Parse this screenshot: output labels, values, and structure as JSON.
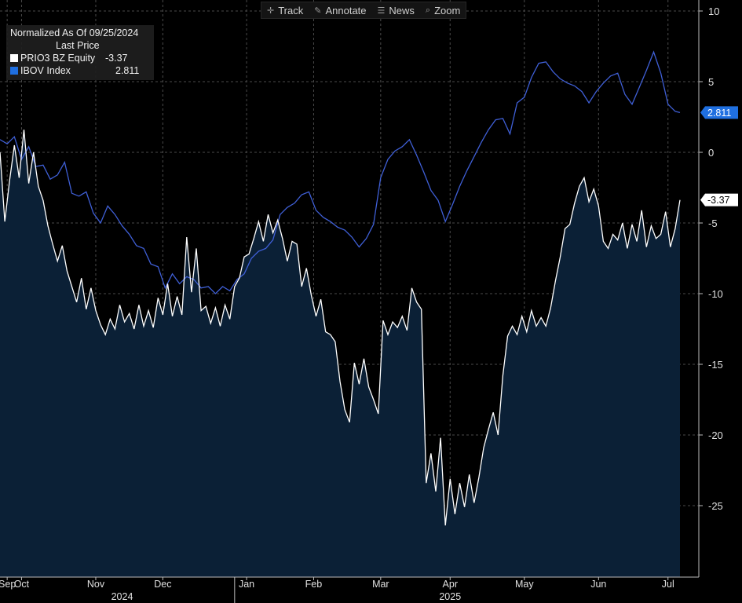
{
  "toolbar": {
    "items": [
      {
        "label": "Track",
        "icon": "crosshair-icon"
      },
      {
        "label": "Annotate",
        "icon": "pencil-icon"
      },
      {
        "label": "News",
        "icon": "news-icon"
      },
      {
        "label": "Zoom",
        "icon": "magnifier-icon"
      }
    ]
  },
  "legend": {
    "title": "Normalized As Of 09/25/2024",
    "subtitle": "Last Price",
    "entries": [
      {
        "name": "PRIO3 BZ Equity",
        "value": "-3.37",
        "color": "#ffffff"
      },
      {
        "name": "IBOV Index",
        "value": "2.811",
        "color": "#1f6fe0"
      }
    ]
  },
  "colors": {
    "background": "#000000",
    "area_fill": "#0b2036",
    "prio_line": "#ffffff",
    "ibov_line": "#3f5fd6",
    "ibov_tag": "#1f6fe0",
    "grid": "#4a4a4a"
  },
  "chart_data": {
    "type": "line",
    "grid": "dashed vertical and horizontal",
    "legend_position": "top-left",
    "y_axis_side": "right",
    "ylim": [
      -30,
      10
    ],
    "yticks": [
      10,
      5,
      0,
      -5,
      -10,
      -15,
      -20,
      -25
    ],
    "xlim": [
      "2024-09-25",
      "2025-07-06"
    ],
    "months": [
      {
        "label": "Sep",
        "date": "2024-09-28"
      },
      {
        "label": "Oct",
        "date": "2024-10-04"
      },
      {
        "label": "Nov",
        "date": "2024-11-04"
      },
      {
        "label": "Dec",
        "date": "2024-12-02"
      },
      {
        "label": "Jan",
        "date": "2025-01-06"
      },
      {
        "label": "Feb",
        "date": "2025-02-03"
      },
      {
        "label": "Mar",
        "date": "2025-03-03"
      },
      {
        "label": "Apr",
        "date": "2025-04-01"
      },
      {
        "label": "May",
        "date": "2025-05-02"
      },
      {
        "label": "Jun",
        "date": "2025-06-02"
      },
      {
        "label": "Jul",
        "date": "2025-07-01"
      }
    ],
    "years": [
      {
        "label": "2024",
        "date": "2024-11-15"
      },
      {
        "label": "2025",
        "date": "2025-04-01"
      }
    ],
    "year_divider": "2025-01-01",
    "series": [
      {
        "name": "PRIO3 BZ Equity",
        "last": -3.37,
        "style": "area",
        "points": [
          [
            "2024-09-25",
            0
          ],
          [
            "2024-09-27",
            -4.9
          ],
          [
            "2024-09-29",
            -2
          ],
          [
            "2024-10-01",
            0.5
          ],
          [
            "2024-10-03",
            -1.8
          ],
          [
            "2024-10-05",
            1.6
          ],
          [
            "2024-10-07",
            -2.2
          ],
          [
            "2024-10-09",
            0
          ],
          [
            "2024-10-11",
            -2.4
          ],
          [
            "2024-10-13",
            -3.4
          ],
          [
            "2024-10-15",
            -5.2
          ],
          [
            "2024-10-17",
            -6.5
          ],
          [
            "2024-10-19",
            -7.7
          ],
          [
            "2024-10-21",
            -6.6
          ],
          [
            "2024-10-23",
            -8.4
          ],
          [
            "2024-10-25",
            -9.5
          ],
          [
            "2024-10-27",
            -10.6
          ],
          [
            "2024-10-29",
            -8.9
          ],
          [
            "2024-10-31",
            -11.1
          ],
          [
            "2024-11-02",
            -9.6
          ],
          [
            "2024-11-04",
            -11.2
          ],
          [
            "2024-11-06",
            -12.2
          ],
          [
            "2024-11-08",
            -12.9
          ],
          [
            "2024-11-10",
            -11.8
          ],
          [
            "2024-11-12",
            -12.5
          ],
          [
            "2024-11-14",
            -10.8
          ],
          [
            "2024-11-16",
            -12.0
          ],
          [
            "2024-11-18",
            -11.4
          ],
          [
            "2024-11-20",
            -12.5
          ],
          [
            "2024-11-22",
            -10.8
          ],
          [
            "2024-11-24",
            -12.3
          ],
          [
            "2024-11-26",
            -11.2
          ],
          [
            "2024-11-28",
            -12.4
          ],
          [
            "2024-11-30",
            -10.3
          ],
          [
            "2024-12-02",
            -11.5
          ],
          [
            "2024-12-04",
            -9.3
          ],
          [
            "2024-12-06",
            -11.6
          ],
          [
            "2024-12-08",
            -10.2
          ],
          [
            "2024-12-10",
            -11.5
          ],
          [
            "2024-12-12",
            -6.0
          ],
          [
            "2024-12-14",
            -9.9
          ],
          [
            "2024-12-16",
            -6.8
          ],
          [
            "2024-12-18",
            -11.2
          ],
          [
            "2024-12-20",
            -10.9
          ],
          [
            "2024-12-22",
            -12.1
          ],
          [
            "2024-12-24",
            -11.0
          ],
          [
            "2024-12-26",
            -12.3
          ],
          [
            "2024-12-28",
            -10.8
          ],
          [
            "2024-12-30",
            -11.8
          ],
          [
            "2025-01-01",
            -9.5
          ],
          [
            "2025-01-03",
            -8.9
          ],
          [
            "2025-01-05",
            -7.4
          ],
          [
            "2025-01-07",
            -7.2
          ],
          [
            "2025-01-09",
            -6.1
          ],
          [
            "2025-01-11",
            -4.9
          ],
          [
            "2025-01-13",
            -6.3
          ],
          [
            "2025-01-15",
            -4.4
          ],
          [
            "2025-01-17",
            -5.7
          ],
          [
            "2025-01-19",
            -4.8
          ],
          [
            "2025-01-21",
            -6.1
          ],
          [
            "2025-01-23",
            -7.7
          ],
          [
            "2025-01-25",
            -6.3
          ],
          [
            "2025-01-27",
            -6.5
          ],
          [
            "2025-01-29",
            -9.5
          ],
          [
            "2025-01-31",
            -8.2
          ],
          [
            "2025-02-02",
            -10.1
          ],
          [
            "2025-02-04",
            -11.6
          ],
          [
            "2025-02-06",
            -10.4
          ],
          [
            "2025-02-08",
            -12.7
          ],
          [
            "2025-02-10",
            -12.9
          ],
          [
            "2025-02-12",
            -13.4
          ],
          [
            "2025-02-14",
            -16.2
          ],
          [
            "2025-02-16",
            -18.2
          ],
          [
            "2025-02-18",
            -19.1
          ],
          [
            "2025-02-20",
            -14.9
          ],
          [
            "2025-02-22",
            -16.4
          ],
          [
            "2025-02-24",
            -14.6
          ],
          [
            "2025-02-26",
            -16.6
          ],
          [
            "2025-02-28",
            -17.5
          ],
          [
            "2025-03-02",
            -18.5
          ],
          [
            "2025-03-04",
            -11.9
          ],
          [
            "2025-03-06",
            -12.9
          ],
          [
            "2025-03-08",
            -12.0
          ],
          [
            "2025-03-10",
            -12.4
          ],
          [
            "2025-03-12",
            -11.6
          ],
          [
            "2025-03-14",
            -12.6
          ],
          [
            "2025-03-16",
            -9.6
          ],
          [
            "2025-03-18",
            -10.6
          ],
          [
            "2025-03-20",
            -11.1
          ],
          [
            "2025-03-22",
            -23.4
          ],
          [
            "2025-03-24",
            -21.3
          ],
          [
            "2025-03-26",
            -24.0
          ],
          [
            "2025-03-28",
            -20.2
          ],
          [
            "2025-03-30",
            -26.4
          ],
          [
            "2025-04-01",
            -23.1
          ],
          [
            "2025-04-03",
            -25.6
          ],
          [
            "2025-04-05",
            -23.4
          ],
          [
            "2025-04-07",
            -25.1
          ],
          [
            "2025-04-09",
            -22.8
          ],
          [
            "2025-04-11",
            -24.8
          ],
          [
            "2025-04-13",
            -23.0
          ],
          [
            "2025-04-15",
            -20.9
          ],
          [
            "2025-04-17",
            -19.6
          ],
          [
            "2025-04-19",
            -18.4
          ],
          [
            "2025-04-21",
            -20.0
          ],
          [
            "2025-04-23",
            -15.8
          ],
          [
            "2025-04-25",
            -13.0
          ],
          [
            "2025-04-27",
            -12.3
          ],
          [
            "2025-04-29",
            -12.9
          ],
          [
            "2025-05-01",
            -11.6
          ],
          [
            "2025-05-03",
            -12.7
          ],
          [
            "2025-05-05",
            -11.2
          ],
          [
            "2025-05-07",
            -12.3
          ],
          [
            "2025-05-09",
            -11.7
          ],
          [
            "2025-05-11",
            -12.3
          ],
          [
            "2025-05-13",
            -11.0
          ],
          [
            "2025-05-15",
            -9.1
          ],
          [
            "2025-05-17",
            -7.4
          ],
          [
            "2025-05-19",
            -5.4
          ],
          [
            "2025-05-21",
            -5.1
          ],
          [
            "2025-05-23",
            -3.6
          ],
          [
            "2025-05-25",
            -2.4
          ],
          [
            "2025-05-27",
            -1.8
          ],
          [
            "2025-05-29",
            -3.5
          ],
          [
            "2025-05-31",
            -2.6
          ],
          [
            "2025-06-02",
            -3.8
          ],
          [
            "2025-06-04",
            -6.3
          ],
          [
            "2025-06-06",
            -6.8
          ],
          [
            "2025-06-08",
            -5.8
          ],
          [
            "2025-06-10",
            -6.2
          ],
          [
            "2025-06-12",
            -5.0
          ],
          [
            "2025-06-14",
            -6.8
          ],
          [
            "2025-06-16",
            -5.1
          ],
          [
            "2025-06-18",
            -6.3
          ],
          [
            "2025-06-20",
            -4.1
          ],
          [
            "2025-06-22",
            -6.7
          ],
          [
            "2025-06-24",
            -5.2
          ],
          [
            "2025-06-26",
            -6.1
          ],
          [
            "2025-06-28",
            -5.8
          ],
          [
            "2025-06-30",
            -4.2
          ],
          [
            "2025-07-02",
            -6.7
          ],
          [
            "2025-07-04",
            -5.4
          ],
          [
            "2025-07-06",
            -3.37
          ]
        ]
      },
      {
        "name": "IBOV Index",
        "last": 2.811,
        "style": "line",
        "points": [
          [
            "2024-09-25",
            0.9
          ],
          [
            "2024-09-28",
            0.6
          ],
          [
            "2024-10-01",
            1.1
          ],
          [
            "2024-10-04",
            -0.5
          ],
          [
            "2024-10-07",
            0.4
          ],
          [
            "2024-10-10",
            -1.0
          ],
          [
            "2024-10-13",
            -0.9
          ],
          [
            "2024-10-16",
            -1.9
          ],
          [
            "2024-10-19",
            -1.6
          ],
          [
            "2024-10-22",
            -0.7
          ],
          [
            "2024-10-25",
            -2.9
          ],
          [
            "2024-10-28",
            -3.1
          ],
          [
            "2024-10-31",
            -2.8
          ],
          [
            "2024-11-03",
            -4.3
          ],
          [
            "2024-11-06",
            -5.0
          ],
          [
            "2024-11-09",
            -3.8
          ],
          [
            "2024-11-12",
            -4.4
          ],
          [
            "2024-11-15",
            -5.2
          ],
          [
            "2024-11-18",
            -5.8
          ],
          [
            "2024-11-21",
            -6.6
          ],
          [
            "2024-11-24",
            -6.8
          ],
          [
            "2024-11-27",
            -7.9
          ],
          [
            "2024-11-30",
            -8.1
          ],
          [
            "2024-12-03",
            -9.6
          ],
          [
            "2024-12-06",
            -8.6
          ],
          [
            "2024-12-09",
            -9.3
          ],
          [
            "2024-12-12",
            -8.8
          ],
          [
            "2024-12-15",
            -9.0
          ],
          [
            "2024-12-18",
            -9.6
          ],
          [
            "2024-12-21",
            -9.5
          ],
          [
            "2024-12-24",
            -10.0
          ],
          [
            "2024-12-27",
            -9.5
          ],
          [
            "2024-12-30",
            -9.8
          ],
          [
            "2025-01-02",
            -9.0
          ],
          [
            "2025-01-05",
            -8.6
          ],
          [
            "2025-01-08",
            -7.5
          ],
          [
            "2025-01-11",
            -7.0
          ],
          [
            "2025-01-14",
            -6.8
          ],
          [
            "2025-01-17",
            -6.2
          ],
          [
            "2025-01-20",
            -4.4
          ],
          [
            "2025-01-23",
            -3.9
          ],
          [
            "2025-01-26",
            -3.6
          ],
          [
            "2025-01-29",
            -3.0
          ],
          [
            "2025-02-01",
            -2.8
          ],
          [
            "2025-02-04",
            -4.1
          ],
          [
            "2025-02-07",
            -4.6
          ],
          [
            "2025-02-10",
            -4.9
          ],
          [
            "2025-02-13",
            -5.3
          ],
          [
            "2025-02-16",
            -5.5
          ],
          [
            "2025-02-19",
            -6.0
          ],
          [
            "2025-02-22",
            -6.7
          ],
          [
            "2025-02-25",
            -6.1
          ],
          [
            "2025-02-28",
            -5.1
          ],
          [
            "2025-03-03",
            -1.8
          ],
          [
            "2025-03-06",
            -0.5
          ],
          [
            "2025-03-09",
            0.1
          ],
          [
            "2025-03-12",
            0.4
          ],
          [
            "2025-03-15",
            0.9
          ],
          [
            "2025-03-18",
            -0.2
          ],
          [
            "2025-03-21",
            -1.4
          ],
          [
            "2025-03-24",
            -2.7
          ],
          [
            "2025-03-27",
            -3.4
          ],
          [
            "2025-03-30",
            -4.9
          ],
          [
            "2025-04-02",
            -3.7
          ],
          [
            "2025-04-05",
            -2.4
          ],
          [
            "2025-04-08",
            -1.3
          ],
          [
            "2025-04-11",
            -0.3
          ],
          [
            "2025-04-14",
            0.7
          ],
          [
            "2025-04-17",
            1.6
          ],
          [
            "2025-04-20",
            2.3
          ],
          [
            "2025-04-23",
            2.4
          ],
          [
            "2025-04-26",
            1.3
          ],
          [
            "2025-04-29",
            3.5
          ],
          [
            "2025-05-02",
            3.9
          ],
          [
            "2025-05-05",
            5.3
          ],
          [
            "2025-05-08",
            6.3
          ],
          [
            "2025-05-11",
            6.4
          ],
          [
            "2025-05-14",
            5.7
          ],
          [
            "2025-05-17",
            5.2
          ],
          [
            "2025-05-20",
            4.9
          ],
          [
            "2025-05-23",
            4.7
          ],
          [
            "2025-05-26",
            4.3
          ],
          [
            "2025-05-29",
            3.5
          ],
          [
            "2025-06-01",
            4.3
          ],
          [
            "2025-06-04",
            4.9
          ],
          [
            "2025-06-07",
            5.4
          ],
          [
            "2025-06-10",
            5.6
          ],
          [
            "2025-06-13",
            4.1
          ],
          [
            "2025-06-16",
            3.4
          ],
          [
            "2025-06-19",
            4.6
          ],
          [
            "2025-06-22",
            5.8
          ],
          [
            "2025-06-25",
            7.1
          ],
          [
            "2025-06-28",
            5.6
          ],
          [
            "2025-07-01",
            3.4
          ],
          [
            "2025-07-04",
            2.9
          ],
          [
            "2025-07-06",
            2.811
          ]
        ]
      }
    ]
  }
}
